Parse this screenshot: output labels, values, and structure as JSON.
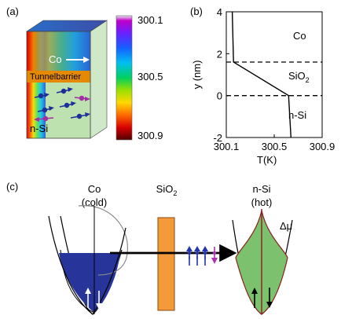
{
  "panel_a": {
    "label": "(a)",
    "layers": {
      "co": "Co",
      "barrier": "Tunnelbarrier",
      "si": "n-Si"
    },
    "colorbar": {
      "top": "300.1",
      "mid": "300.5",
      "bottom": "300.9"
    }
  },
  "panel_b": {
    "label": "(b)",
    "chart_data": {
      "type": "line",
      "xlabel": "T(K)",
      "ylabel": "y (nm)",
      "xlim": [
        300.1,
        300.9
      ],
      "ylim": [
        -2,
        4
      ],
      "x_ticks": [
        "300.1",
        "300.5",
        "300.9"
      ],
      "y_ticks": [
        "-2",
        "0",
        "2",
        "4"
      ],
      "series": [
        {
          "x": [
            300.15,
            300.16,
            300.62,
            300.64
          ],
          "y": [
            4,
            1.6,
            0,
            -2
          ]
        }
      ],
      "dashed_y": [
        1.6,
        0
      ],
      "region_labels": {
        "co": "Co",
        "sio2": "SiO",
        "sio2_sub": "2",
        "nsi": "n-Si"
      }
    }
  },
  "panel_c": {
    "label": "(c)",
    "co": {
      "name": "Co",
      "state": "(cold)"
    },
    "sio2": {
      "name": "SiO",
      "sub": "2"
    },
    "nsi": {
      "name": "n-Si",
      "state": "(hot)"
    },
    "mu_label": "Δμ"
  }
}
